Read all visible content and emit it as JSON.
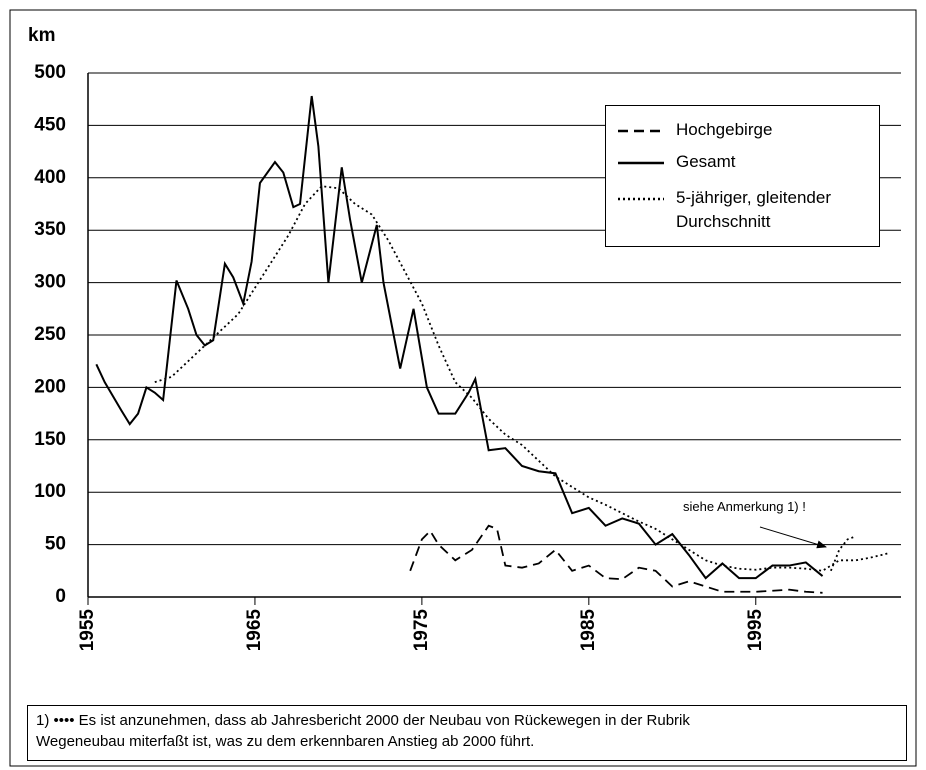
{
  "chart_data": {
    "type": "line",
    "ylabel": "km",
    "xlim": [
      1955,
      2003.7
    ],
    "xticks": [
      1955,
      1965,
      1975,
      1985,
      1995
    ],
    "ylim": [
      0,
      500
    ],
    "yticks": [
      0,
      50,
      100,
      150,
      200,
      250,
      300,
      350,
      400,
      450,
      500
    ],
    "grid": true,
    "legend": "upper right",
    "annotation": "siehe Anmerkung 1) !",
    "footnote": "1) •••• Es ist anzunehmen, dass ab Jahresbericht 2000 der Neubau von Rückewegen in der Rubrik\nWegeneubau miterfaßt ist, was zu dem erkennbaren Anstieg ab 2000 führt.",
    "series": [
      {
        "name": "Hochgebirge",
        "style": "dashed",
        "color": "#000000",
        "x": [
          1974.3,
          1975,
          1975.5,
          1976,
          1977,
          1978,
          1979,
          1979.5,
          1980,
          1981,
          1982,
          1983,
          1984,
          1985,
          1986,
          1987,
          1988,
          1989,
          1990,
          1991,
          1992,
          1993,
          1994,
          1995,
          1996,
          1997,
          1998,
          1999
        ],
        "values": [
          25,
          55,
          63,
          50,
          35,
          45,
          68,
          65,
          30,
          28,
          32,
          45,
          25,
          30,
          18,
          17,
          28,
          25,
          10,
          15,
          10,
          5,
          5,
          5,
          6,
          7,
          5,
          4
        ]
      },
      {
        "name": "Gesamt",
        "style": "solid",
        "color": "#000000",
        "x": [
          1955.5,
          1956,
          1957,
          1957.5,
          1958,
          1958.5,
          1959,
          1959.5,
          1960.3,
          1961,
          1961.5,
          1962,
          1962.5,
          1963.2,
          1963.7,
          1964.3,
          1964.8,
          1965.3,
          1966.2,
          1966.7,
          1967.3,
          1967.7,
          1968.4,
          1968.8,
          1969.4,
          1970.2,
          1970.7,
          1971.4,
          1972.3,
          1972.7,
          1973.7,
          1974.5,
          1975.3,
          1976,
          1977,
          1977.8,
          1978.2,
          1979,
          1980,
          1981,
          1982,
          1983,
          1984,
          1985,
          1986,
          1987,
          1988,
          1989,
          1990,
          1991,
          1992,
          1993,
          1994,
          1995,
          1996,
          1997,
          1998,
          1999
        ],
        "values": [
          222,
          205,
          178,
          165,
          175,
          200,
          195,
          188,
          302,
          275,
          250,
          240,
          245,
          318,
          305,
          280,
          320,
          395,
          415,
          405,
          372,
          375,
          478,
          430,
          300,
          410,
          360,
          300,
          355,
          300,
          218,
          275,
          200,
          175,
          175,
          195,
          208,
          140,
          142,
          125,
          120,
          118,
          80,
          85,
          68,
          75,
          70,
          50,
          60,
          40,
          18,
          32,
          18,
          18,
          30,
          30,
          33,
          20
        ]
      },
      {
        "name": "5-jähriger, gleitender\nDurchschnitt",
        "style": "dotted",
        "color": "#000000",
        "x": [
          1959,
          1960,
          1962,
          1964,
          1966,
          1967,
          1968,
          1969,
          1970,
          1971,
          1972,
          1973,
          1974,
          1975,
          1976,
          1977,
          1978,
          1979,
          1980,
          1981,
          1982,
          1983,
          1984,
          1985,
          1986,
          1987,
          1988,
          1989,
          1990,
          1991,
          1992,
          1993,
          1994,
          1995,
          1996,
          1997,
          1998,
          1999,
          2000,
          2001,
          2002,
          2003
        ],
        "values": [
          205,
          210,
          240,
          270,
          320,
          345,
          375,
          392,
          390,
          375,
          365,
          340,
          310,
          280,
          240,
          205,
          190,
          170,
          155,
          145,
          130,
          115,
          105,
          95,
          88,
          80,
          72,
          65,
          55,
          45,
          35,
          30,
          27,
          26,
          28,
          28,
          27,
          25,
          35,
          35,
          38,
          42
        ]
      },
      {
        "style": "dotted",
        "color": "#000000",
        "x": [
          1999.5,
          2000,
          2000.5,
          2001
        ],
        "values": [
          25,
          45,
          55,
          58
        ]
      }
    ]
  }
}
